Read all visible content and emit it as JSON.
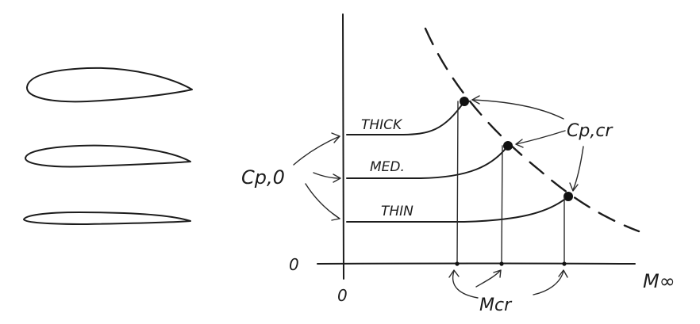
{
  "airfoils": [
    {
      "label": "thick"
    },
    {
      "label": "medium"
    },
    {
      "label": "thin"
    }
  ],
  "axes": {
    "x_axis_label": "M∞",
    "origin_x_label": "0",
    "origin_y_label": "0"
  },
  "curves": [
    {
      "label": "THICK"
    },
    {
      "label": "MED."
    },
    {
      "label": "THIN"
    }
  ],
  "annotations": {
    "cp0_label": "Cp,0",
    "cp_cr_label": "Cp,cr",
    "m_cr_label": "Mcr"
  }
}
